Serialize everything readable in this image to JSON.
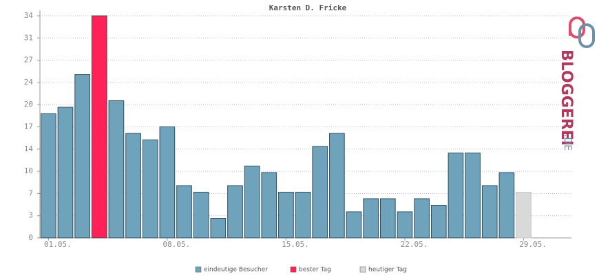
{
  "chart_data": {
    "type": "bar",
    "title": "Karsten D. Fricke",
    "categories": [
      "01.05.",
      null,
      null,
      null,
      null,
      null,
      null,
      "08.05.",
      null,
      null,
      null,
      null,
      null,
      null,
      "15.05.",
      null,
      null,
      null,
      null,
      null,
      null,
      "22.05.",
      null,
      null,
      null,
      null,
      null,
      null,
      "29.05."
    ],
    "values": [
      19,
      20,
      25,
      34,
      21,
      16,
      15,
      17,
      8,
      7,
      3,
      8,
      11,
      10,
      7,
      7,
      14,
      16,
      4,
      6,
      6,
      4,
      6,
      5,
      13,
      13,
      8,
      10,
      7
    ],
    "colors": [
      "#6ea3bb",
      "#6ea3bb",
      "#6ea3bb",
      "#ff2257",
      "#6ea3bb",
      "#6ea3bb",
      "#6ea3bb",
      "#6ea3bb",
      "#6ea3bb",
      "#6ea3bb",
      "#6ea3bb",
      "#6ea3bb",
      "#6ea3bb",
      "#6ea3bb",
      "#6ea3bb",
      "#6ea3bb",
      "#6ea3bb",
      "#6ea3bb",
      "#6ea3bb",
      "#6ea3bb",
      "#6ea3bb",
      "#6ea3bb",
      "#6ea3bb",
      "#6ea3bb",
      "#6ea3bb",
      "#6ea3bb",
      "#6ea3bb",
      "#6ea3bb",
      "#d9d9d9"
    ],
    "ylim": [
      0,
      34
    ],
    "yticks": [
      0,
      {
        "value": 3.4,
        "label": "3"
      },
      {
        "value": 6.8,
        "label": "7"
      },
      {
        "value": 10.2,
        "label": "10"
      },
      {
        "value": 13.6,
        "label": "14"
      },
      17,
      {
        "value": 20.4,
        "label": "20"
      },
      {
        "value": 23.8,
        "label": "24"
      },
      {
        "value": 27.2,
        "label": "27"
      },
      {
        "value": 30.6,
        "label": "31"
      },
      34
    ],
    "grid": true,
    "legend": [
      {
        "name": "eindeutige Besucher",
        "color": "#6ea3bb"
      },
      {
        "name": "bester Tag",
        "color": "#ff2257"
      },
      {
        "name": "heutiger Tag",
        "color": "#d9d9d9"
      }
    ]
  },
  "logo": {
    "name": "BLOGGEREI",
    "suffix": ".DE"
  }
}
